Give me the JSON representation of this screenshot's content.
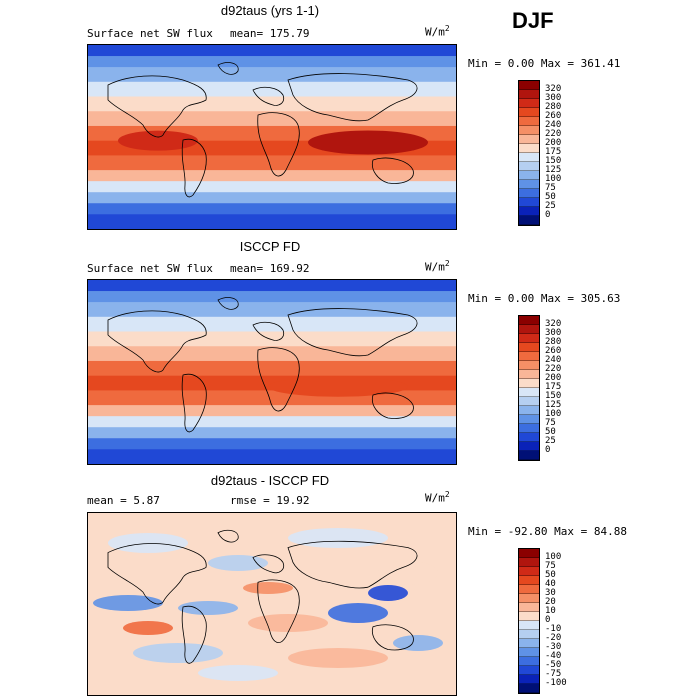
{
  "season": "DJF",
  "panels": [
    {
      "title": "d92taus (yrs 1-1)",
      "left_label": "Surface net SW flux",
      "mean_text": "mean= 175.79",
      "unit_base": "W/m",
      "unit_exp": "2",
      "minmax_text": "Min =   0.00 Max = 361.41",
      "colorbar": {
        "labels": [
          "320",
          "300",
          "280",
          "260",
          "240",
          "220",
          "200",
          "175",
          "150",
          "125",
          "100",
          "75",
          "50",
          "25",
          "0"
        ],
        "colors": [
          "#8b0000",
          "#b0150e",
          "#d02a17",
          "#e5481f",
          "#ef6a3e",
          "#f58f66",
          "#f9b698",
          "#fbdcc9",
          "#d8e6f7",
          "#b5cff1",
          "#8ab3ec",
          "#5f92e6",
          "#3c6ee0",
          "#2048d6",
          "#0a22b8",
          "#001076"
        ]
      },
      "type": "sw"
    },
    {
      "title": "ISCCP FD",
      "left_label": "Surface net SW flux",
      "mean_text": "mean= 169.92",
      "unit_base": "W/m",
      "unit_exp": "2",
      "minmax_text": "Min =   0.00 Max = 305.63",
      "colorbar": {
        "labels": [
          "320",
          "300",
          "280",
          "260",
          "240",
          "220",
          "200",
          "175",
          "150",
          "125",
          "100",
          "75",
          "50",
          "25",
          "0"
        ],
        "colors": [
          "#8b0000",
          "#b0150e",
          "#d02a17",
          "#e5481f",
          "#ef6a3e",
          "#f58f66",
          "#f9b698",
          "#fbdcc9",
          "#d8e6f7",
          "#b5cff1",
          "#8ab3ec",
          "#5f92e6",
          "#3c6ee0",
          "#2048d6",
          "#0a22b8",
          "#001076"
        ]
      },
      "type": "sw"
    },
    {
      "title": "d92taus - ISCCP FD",
      "left_label": "mean =   5.87",
      "mean_text": "rmse =  19.92",
      "unit_base": "W/m",
      "unit_exp": "2",
      "minmax_text": "Min = -92.80 Max =  84.88",
      "colorbar": {
        "labels": [
          "100",
          "75",
          "50",
          "40",
          "30",
          "20",
          "10",
          "0",
          "-10",
          "-20",
          "-30",
          "-40",
          "-50",
          "-75",
          "-100"
        ],
        "colors": [
          "#8b0000",
          "#b0150e",
          "#d02a17",
          "#e5481f",
          "#ef6a3e",
          "#f58f66",
          "#f9b698",
          "#fbdcc9",
          "#d8e6f7",
          "#b5cff1",
          "#8ab3ec",
          "#5f92e6",
          "#3c6ee0",
          "#2048d6",
          "#0a22b8",
          "#001076"
        ]
      },
      "type": "diff"
    }
  ]
}
